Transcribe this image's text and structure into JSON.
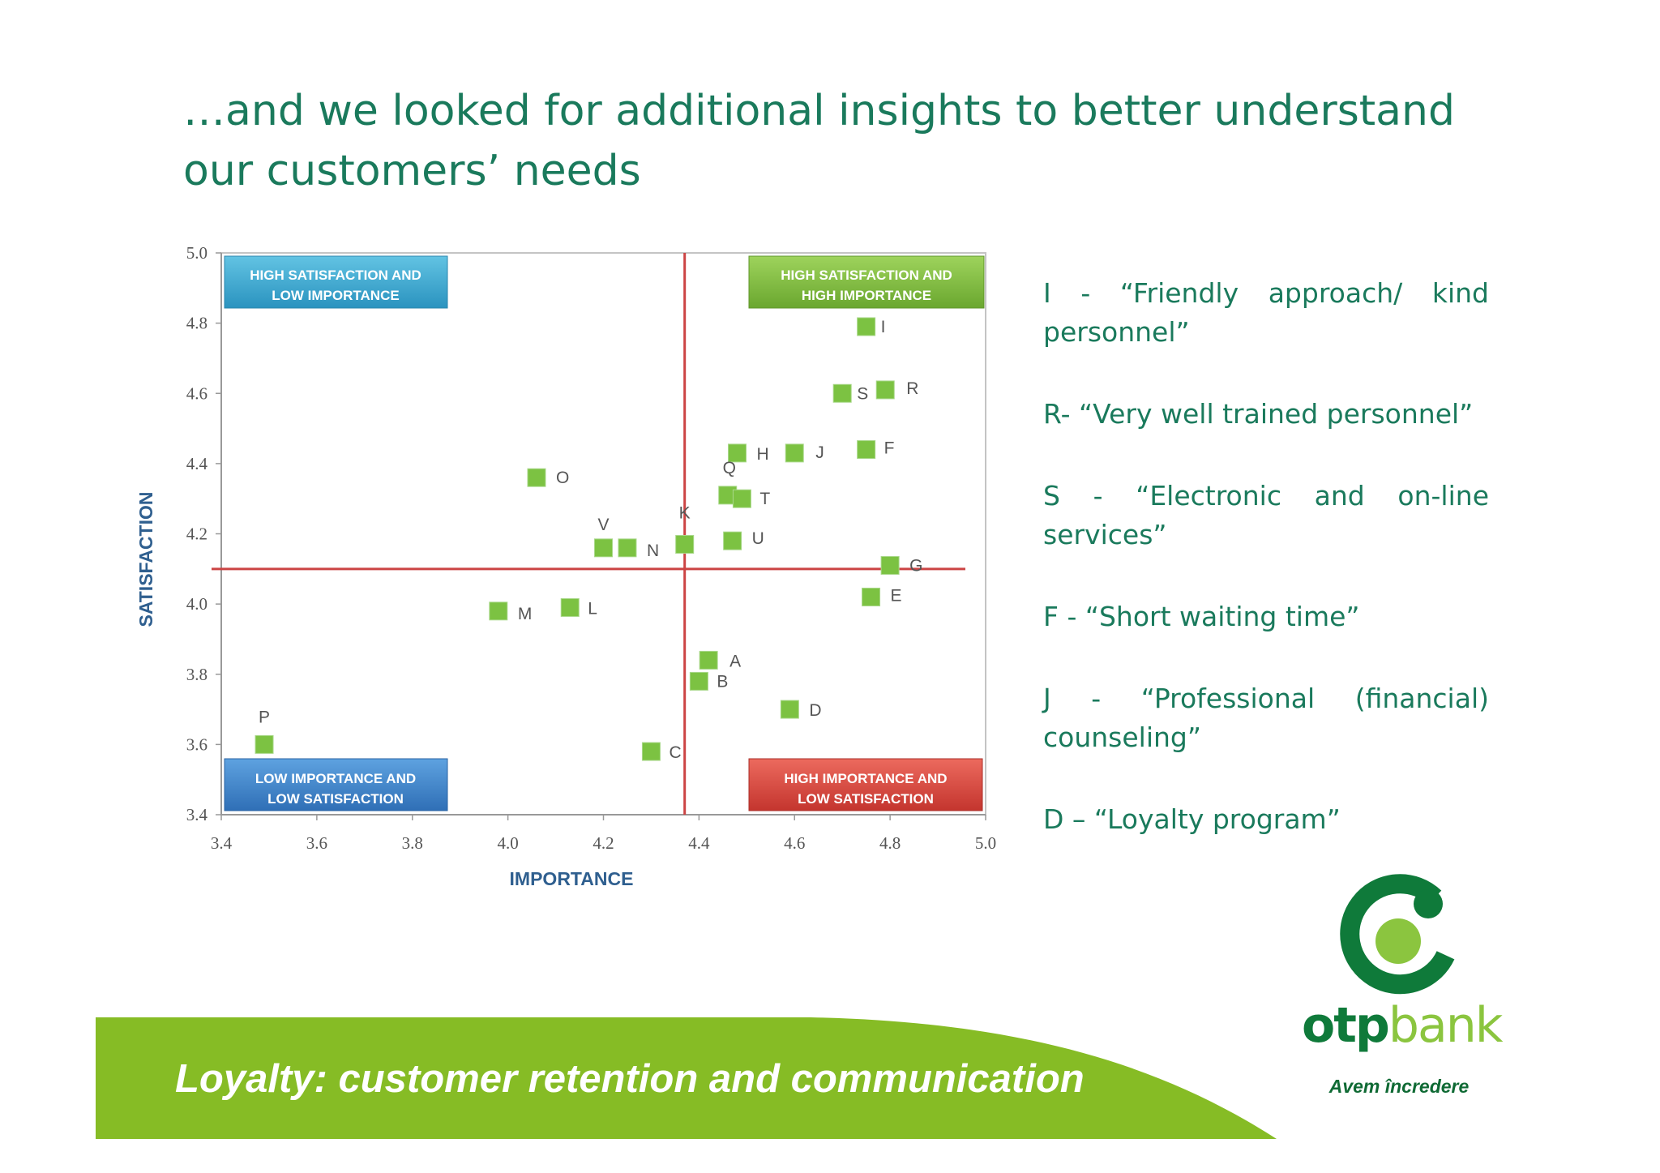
{
  "slide_title": "…and we looked for additional insights to better understand our customers’ needs",
  "chart_data": {
    "type": "scatter",
    "xlabel": "IMPORTANCE",
    "ylabel": "SATISFACTION",
    "xlim": [
      3.4,
      5.0
    ],
    "ylim": [
      3.4,
      5.0
    ],
    "x_ticks": [
      "3.4",
      "3.6",
      "3.8",
      "4.0",
      "4.2",
      "4.4",
      "4.6",
      "4.8",
      "5.0"
    ],
    "y_ticks": [
      "3.4",
      "3.6",
      "3.8",
      "4.0",
      "4.2",
      "4.4",
      "4.6",
      "4.8",
      "5.0"
    ],
    "reference_lines": {
      "importance": 4.37,
      "satisfaction": 4.1
    },
    "quadrant_labels": {
      "top_left": [
        "HIGH SATISFACTION AND",
        "LOW IMPORTANCE"
      ],
      "top_right": [
        "HIGH SATISFACTION AND",
        "HIGH IMPORTANCE"
      ],
      "bottom_left": [
        "LOW IMPORTANCE AND",
        "LOW SATISFACTION"
      ],
      "bottom_right": [
        "HIGH IMPORTANCE AND",
        "LOW SATISFACTION"
      ]
    },
    "points": [
      {
        "label": "I",
        "x": 4.75,
        "y": 4.79
      },
      {
        "label": "S",
        "x": 4.7,
        "y": 4.6
      },
      {
        "label": "R",
        "x": 4.79,
        "y": 4.61
      },
      {
        "label": "H",
        "x": 4.48,
        "y": 4.43
      },
      {
        "label": "J",
        "x": 4.6,
        "y": 4.43
      },
      {
        "label": "F",
        "x": 4.75,
        "y": 4.44
      },
      {
        "label": "O",
        "x": 4.06,
        "y": 4.36
      },
      {
        "label": "Q",
        "x": 4.46,
        "y": 4.31
      },
      {
        "label": "T",
        "x": 4.49,
        "y": 4.3
      },
      {
        "label": "V",
        "x": 4.2,
        "y": 4.16
      },
      {
        "label": "N",
        "x": 4.25,
        "y": 4.16
      },
      {
        "label": "K",
        "x": 4.37,
        "y": 4.17
      },
      {
        "label": "U",
        "x": 4.47,
        "y": 4.18
      },
      {
        "label": "G",
        "x": 4.8,
        "y": 4.11
      },
      {
        "label": "E",
        "x": 4.76,
        "y": 4.02
      },
      {
        "label": "M",
        "x": 3.98,
        "y": 3.98
      },
      {
        "label": "L",
        "x": 4.13,
        "y": 3.99
      },
      {
        "label": "A",
        "x": 4.42,
        "y": 3.84
      },
      {
        "label": "B",
        "x": 4.4,
        "y": 3.78
      },
      {
        "label": "D",
        "x": 4.59,
        "y": 3.7
      },
      {
        "label": "P",
        "x": 3.49,
        "y": 3.6
      },
      {
        "label": "C",
        "x": 4.3,
        "y": 3.58
      }
    ]
  },
  "legend": [
    "I -  “Friendly approach/ kind personnel”",
    "R-  “Very well trained personnel”",
    "S  -  “Electronic and on-line services”",
    "F - “Short waiting time”",
    "J  -  “Professional (financial) counseling”",
    "D – “Loyalty program”"
  ],
  "footer": {
    "text": "Loyalty: customer retention and communication"
  },
  "brand": {
    "name_bold": "otp",
    "name_light": "bank",
    "slogan": "Avem încredere"
  },
  "colors": {
    "title": "#1a7a5c",
    "marker": "#7cc242",
    "reference_line": "#cc4444",
    "quadrant_top_left": "#3aa8cf",
    "quadrant_top_right": "#7db93f",
    "quadrant_bottom_left": "#3f82c9",
    "quadrant_bottom_right": "#d6453f",
    "footer_band": "#86bc25",
    "logo_dark": "#0f7a3a",
    "logo_light": "#8bc53f"
  }
}
